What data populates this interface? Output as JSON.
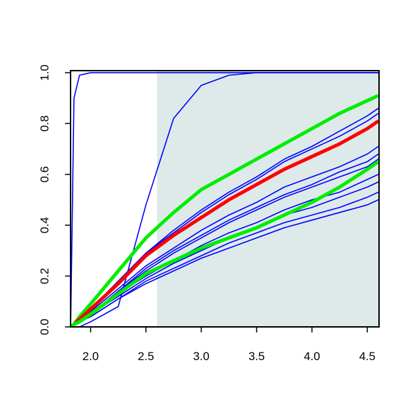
{
  "chart_data": {
    "type": "line",
    "x": [
      1.82,
      1.85,
      1.9,
      2.0,
      2.25,
      2.5,
      2.75,
      3.0,
      3.25,
      3.5,
      3.75,
      4.0,
      4.25,
      4.5,
      4.6
    ],
    "shaded_region": {
      "xlim": [
        2.6,
        4.606
      ],
      "color": "#deeaea"
    },
    "series": [
      {
        "color": "#0000ff",
        "values": [
          0,
          0.9,
          0.99,
          1,
          1,
          1,
          1,
          1,
          1,
          1,
          1,
          1,
          1,
          1,
          1
        ]
      },
      {
        "color": "#0000ff",
        "values": [
          0,
          0,
          0,
          0.02,
          0.08,
          0.48,
          0.82,
          0.95,
          0.99,
          1,
          1,
          1,
          1,
          1,
          1
        ]
      },
      {
        "color": "#0000ff",
        "values": [
          0,
          0.01,
          0.03,
          0.07,
          0.18,
          0.29,
          0.38,
          0.46,
          0.53,
          0.59,
          0.66,
          0.71,
          0.77,
          0.83,
          0.86
        ]
      },
      {
        "color": "#0000ff",
        "values": [
          0,
          0.01,
          0.03,
          0.07,
          0.18,
          0.29,
          0.37,
          0.45,
          0.52,
          0.58,
          0.65,
          0.7,
          0.75,
          0.81,
          0.84
        ]
      },
      {
        "color": "#0000ff",
        "values": [
          0,
          0.01,
          0.02,
          0.06,
          0.15,
          0.24,
          0.31,
          0.38,
          0.44,
          0.49,
          0.55,
          0.59,
          0.63,
          0.68,
          0.71
        ]
      },
      {
        "color": "#0000ff",
        "values": [
          0,
          0.01,
          0.02,
          0.05,
          0.14,
          0.23,
          0.3,
          0.36,
          0.42,
          0.47,
          0.52,
          0.56,
          0.61,
          0.65,
          0.68
        ]
      },
      {
        "color": "#0000ff",
        "values": [
          0,
          0.01,
          0.02,
          0.05,
          0.14,
          0.22,
          0.29,
          0.35,
          0.41,
          0.46,
          0.51,
          0.55,
          0.59,
          0.63,
          0.66
        ]
      },
      {
        "color": "#0000ff",
        "values": [
          0,
          0.01,
          0.02,
          0.05,
          0.13,
          0.2,
          0.26,
          0.32,
          0.37,
          0.41,
          0.46,
          0.5,
          0.53,
          0.58,
          0.6
        ]
      },
      {
        "color": "#0000ff",
        "values": [
          0,
          0.01,
          0.02,
          0.05,
          0.12,
          0.19,
          0.25,
          0.3,
          0.35,
          0.39,
          0.44,
          0.47,
          0.51,
          0.55,
          0.57
        ]
      },
      {
        "color": "#0000ff",
        "values": [
          0,
          0.01,
          0.02,
          0.04,
          0.11,
          0.18,
          0.23,
          0.28,
          0.33,
          0.37,
          0.41,
          0.44,
          0.47,
          0.51,
          0.53
        ]
      },
      {
        "color": "#0000ff",
        "values": [
          0,
          0.01,
          0.02,
          0.04,
          0.11,
          0.17,
          0.22,
          0.27,
          0.31,
          0.35,
          0.39,
          0.42,
          0.45,
          0.48,
          0.5
        ]
      },
      {
        "color": "#00ee00",
        "values": [
          0,
          0.01,
          0.04,
          0.09,
          0.22,
          0.35,
          0.45,
          0.54,
          0.6,
          0.66,
          0.72,
          0.78,
          0.84,
          0.89,
          0.91
        ]
      },
      {
        "color": "#ff0000",
        "values": [
          0,
          0.01,
          0.03,
          0.07,
          0.17,
          0.28,
          0.36,
          0.43,
          0.5,
          0.56,
          0.62,
          0.67,
          0.72,
          0.78,
          0.81
        ]
      },
      {
        "color": "#00ee00",
        "values": [
          0,
          0.01,
          0.02,
          0.05,
          0.13,
          0.21,
          0.26,
          0.31,
          0.35,
          0.39,
          0.44,
          0.49,
          0.55,
          0.62,
          0.65
        ]
      }
    ],
    "xlim": [
      1.819,
      4.606
    ],
    "ylim": [
      0,
      1.008
    ],
    "xticks": [
      {
        "value": 2.0,
        "label": "2.0"
      },
      2.5,
      {
        "value": 3.0,
        "label": "3.0"
      },
      3.5,
      {
        "value": 4.0,
        "label": "4.0"
      },
      4.5
    ],
    "yticks": [
      {
        "value": 0.0,
        "label": "0.0"
      },
      0.2,
      0.4,
      0.6,
      0.8,
      {
        "value": 1.0,
        "label": "1.0"
      }
    ]
  }
}
